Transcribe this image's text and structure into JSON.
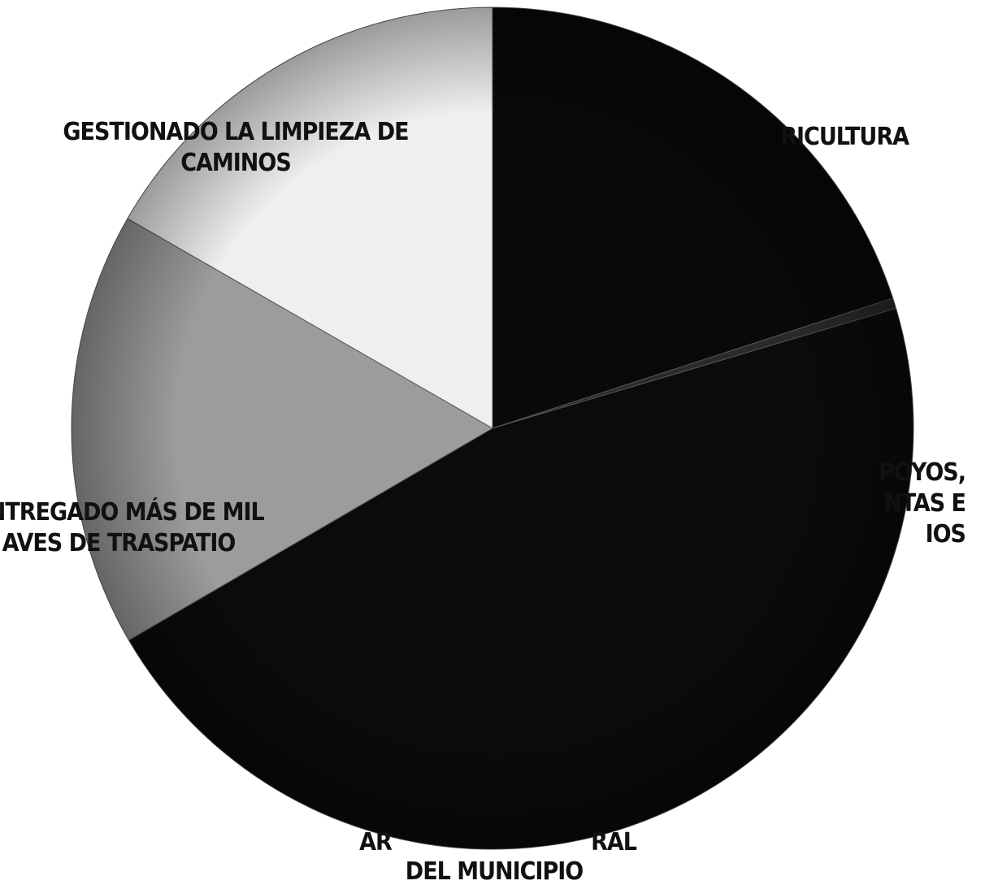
{
  "chart_data": {
    "type": "pie",
    "title": "",
    "start_angle_deg": 0,
    "direction": "clockwise",
    "slices": [
      {
        "label": "…RICULTURA",
        "value": 20.0,
        "color": "#090909"
      },
      {
        "label": "…POYOS, …NTAS E …NOS",
        "value": 0.4,
        "color": "#2a2a2a"
      },
      {
        "label": "AR… …RAL DEL MUNICIPIO",
        "value": 46.2,
        "color": "#0b0b0b"
      },
      {
        "label": "ENTREGADO MÁS DE MIL AVES DE TRASPATIO",
        "value": 16.7,
        "color": "#9c9c9c"
      },
      {
        "label": "GESTIONADO LA LIMPIEZA DE CAMINOS",
        "value": 16.7,
        "color": "#efefef"
      }
    ],
    "labels": [
      {
        "lines": [
          "RICULTURA"
        ]
      },
      {
        "lines": [
          "POYOS,",
          "NTAS E",
          "IOS"
        ]
      },
      {
        "lines": [
          "AR",
          "RAL",
          "DEL MUNICIPIO"
        ]
      },
      {
        "lines": [
          "ENTREGADO MÁS DE MIL",
          "AVES DE TRASPATIO"
        ]
      },
      {
        "lines": [
          "GESTIONADO LA LIMPIEZA DE",
          "CAMINOS"
        ]
      }
    ]
  }
}
